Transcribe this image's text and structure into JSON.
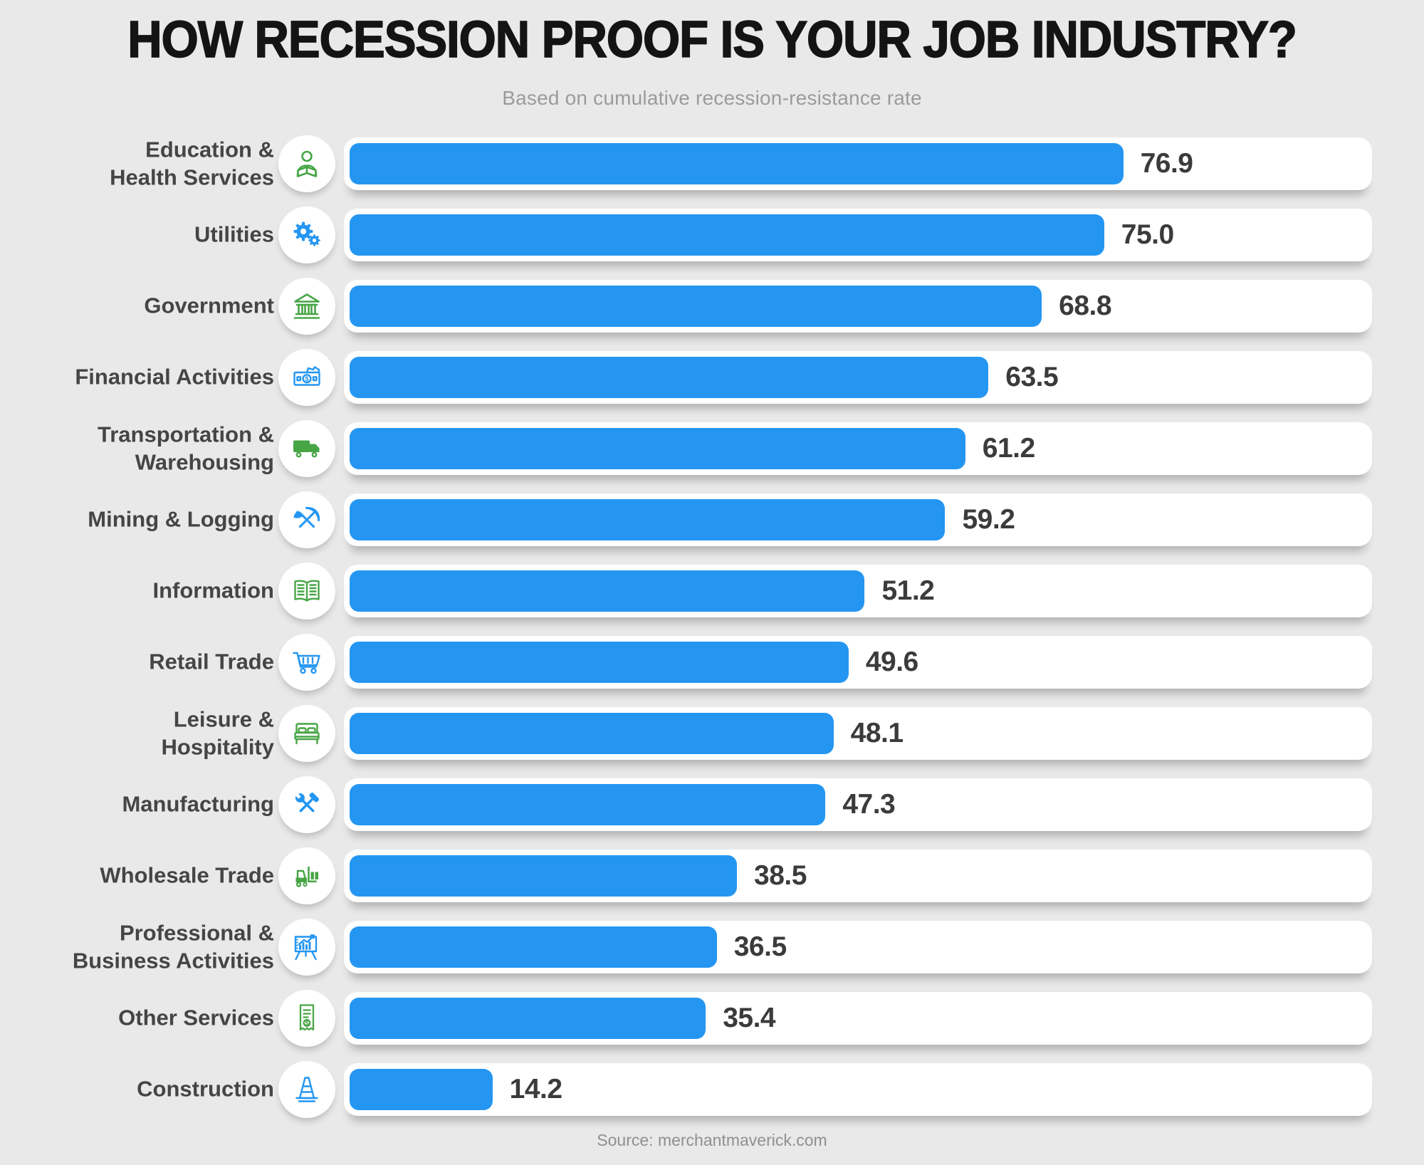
{
  "title": "HOW RECESSION PROOF IS YOUR JOB INDUSTRY?",
  "subtitle": "Based on cumulative recession-resistance rate",
  "source": "Source: merchantmaverick.com",
  "colors": {
    "background": "#E9E9E9",
    "bar_blue": "#2496F2",
    "icon_green": "#47A546",
    "icon_blue": "#2496F2",
    "title_text": "#141414",
    "subtitle_text": "#9B9B9B",
    "label_text": "#454545",
    "value_text": "#3B3B3B",
    "source_text": "#8F8F8F"
  },
  "chart_data": {
    "type": "bar",
    "orientation": "horizontal",
    "title": "HOW RECESSION PROOF IS YOUR JOB INDUSTRY?",
    "subtitle": "Based on cumulative recession-resistance rate",
    "source": "Source: merchantmaverick.com",
    "xlabel": "",
    "ylabel": "",
    "xlim": [
      0,
      100
    ],
    "grid": false,
    "legend": false,
    "categories": [
      "Education & Health Services",
      "Utilities",
      "Government",
      "Financial Activities",
      "Transportation & Warehousing",
      "Mining & Logging",
      "Information",
      "Retail Trade",
      "Leisure & Hospitality",
      "Manufacturing",
      "Wholesale Trade",
      "Professional & Business Activities",
      "Other Services",
      "Construction"
    ],
    "values": [
      76.9,
      75.0,
      68.8,
      63.5,
      61.2,
      59.2,
      51.2,
      49.6,
      48.1,
      47.3,
      38.5,
      36.5,
      35.4,
      14.2
    ]
  },
  "rows": [
    {
      "label_lines": [
        "Education &",
        "Health Services"
      ],
      "value": 76.9,
      "value_label": "76.9",
      "icon": "person-icon",
      "icon_color": "green"
    },
    {
      "label_lines": [
        "Utilities"
      ],
      "value": 75.0,
      "value_label": "75.0",
      "icon": "gears-icon",
      "icon_color": "blue"
    },
    {
      "label_lines": [
        "Government"
      ],
      "value": 68.8,
      "value_label": "68.8",
      "icon": "bank-icon",
      "icon_color": "green"
    },
    {
      "label_lines": [
        "Financial Activities"
      ],
      "value": 63.5,
      "value_label": "63.5",
      "icon": "money-icon",
      "icon_color": "blue"
    },
    {
      "label_lines": [
        "Transportation &",
        "Warehousing"
      ],
      "value": 61.2,
      "value_label": "61.2",
      "icon": "truck-icon",
      "icon_color": "green"
    },
    {
      "label_lines": [
        "Mining & Logging"
      ],
      "value": 59.2,
      "value_label": "59.2",
      "icon": "pickaxe-icon",
      "icon_color": "blue"
    },
    {
      "label_lines": [
        "Information"
      ],
      "value": 51.2,
      "value_label": "51.2",
      "icon": "book-icon",
      "icon_color": "green"
    },
    {
      "label_lines": [
        "Retail Trade"
      ],
      "value": 49.6,
      "value_label": "49.6",
      "icon": "cart-icon",
      "icon_color": "blue"
    },
    {
      "label_lines": [
        "Leisure &",
        "Hospitality"
      ],
      "value": 48.1,
      "value_label": "48.1",
      "icon": "bed-icon",
      "icon_color": "green"
    },
    {
      "label_lines": [
        "Manufacturing"
      ],
      "value": 47.3,
      "value_label": "47.3",
      "icon": "tools-icon",
      "icon_color": "blue"
    },
    {
      "label_lines": [
        "Wholesale Trade"
      ],
      "value": 38.5,
      "value_label": "38.5",
      "icon": "forklift-icon",
      "icon_color": "green"
    },
    {
      "label_lines": [
        "Professional &",
        "Business Activities"
      ],
      "value": 36.5,
      "value_label": "36.5",
      "icon": "chart-icon",
      "icon_color": "blue"
    },
    {
      "label_lines": [
        "Other Services"
      ],
      "value": 35.4,
      "value_label": "35.4",
      "icon": "receipt-icon",
      "icon_color": "green"
    },
    {
      "label_lines": [
        "Construction"
      ],
      "value": 14.2,
      "value_label": "14.2",
      "icon": "cone-icon",
      "icon_color": "blue"
    }
  ]
}
